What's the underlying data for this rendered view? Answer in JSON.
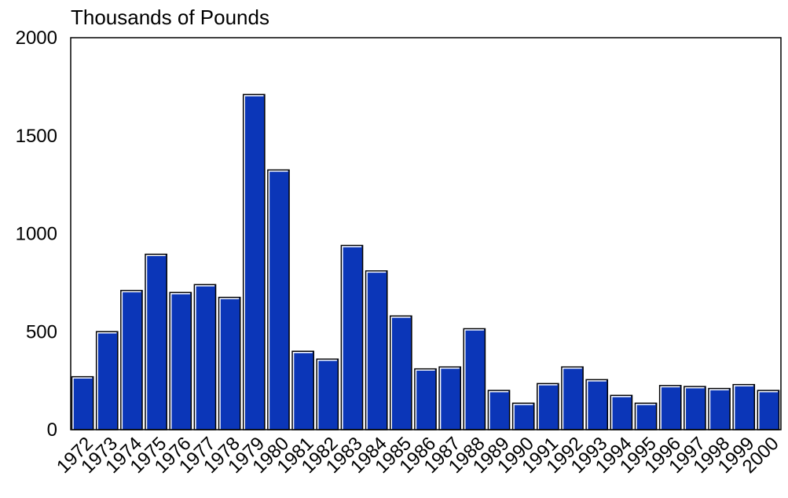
{
  "chart_data": {
    "type": "bar",
    "ylabel": "Thousands of Pounds",
    "xlabel": "",
    "title": "",
    "ylim": [
      0,
      2000
    ],
    "yticks": [
      0,
      500,
      1000,
      1500,
      2000
    ],
    "grid": false,
    "categories": [
      "1972",
      "1973",
      "1974",
      "1975",
      "1976",
      "1977",
      "1978",
      "1979",
      "1980",
      "1981",
      "1982",
      "1983",
      "1984",
      "1985",
      "1986",
      "1987",
      "1988",
      "1989",
      "1990",
      "1991",
      "1992",
      "1993",
      "1994",
      "1995",
      "1996",
      "1997",
      "1998",
      "1999",
      "2000"
    ],
    "values": [
      270,
      500,
      710,
      895,
      700,
      740,
      675,
      1710,
      1325,
      400,
      360,
      940,
      810,
      580,
      310,
      320,
      515,
      200,
      135,
      235,
      320,
      255,
      175,
      135,
      225,
      220,
      210,
      230,
      200
    ],
    "colors": {
      "bar": "#0b36b8",
      "bar_edge": "#000000",
      "bar_highlight": "#ffffff"
    }
  }
}
